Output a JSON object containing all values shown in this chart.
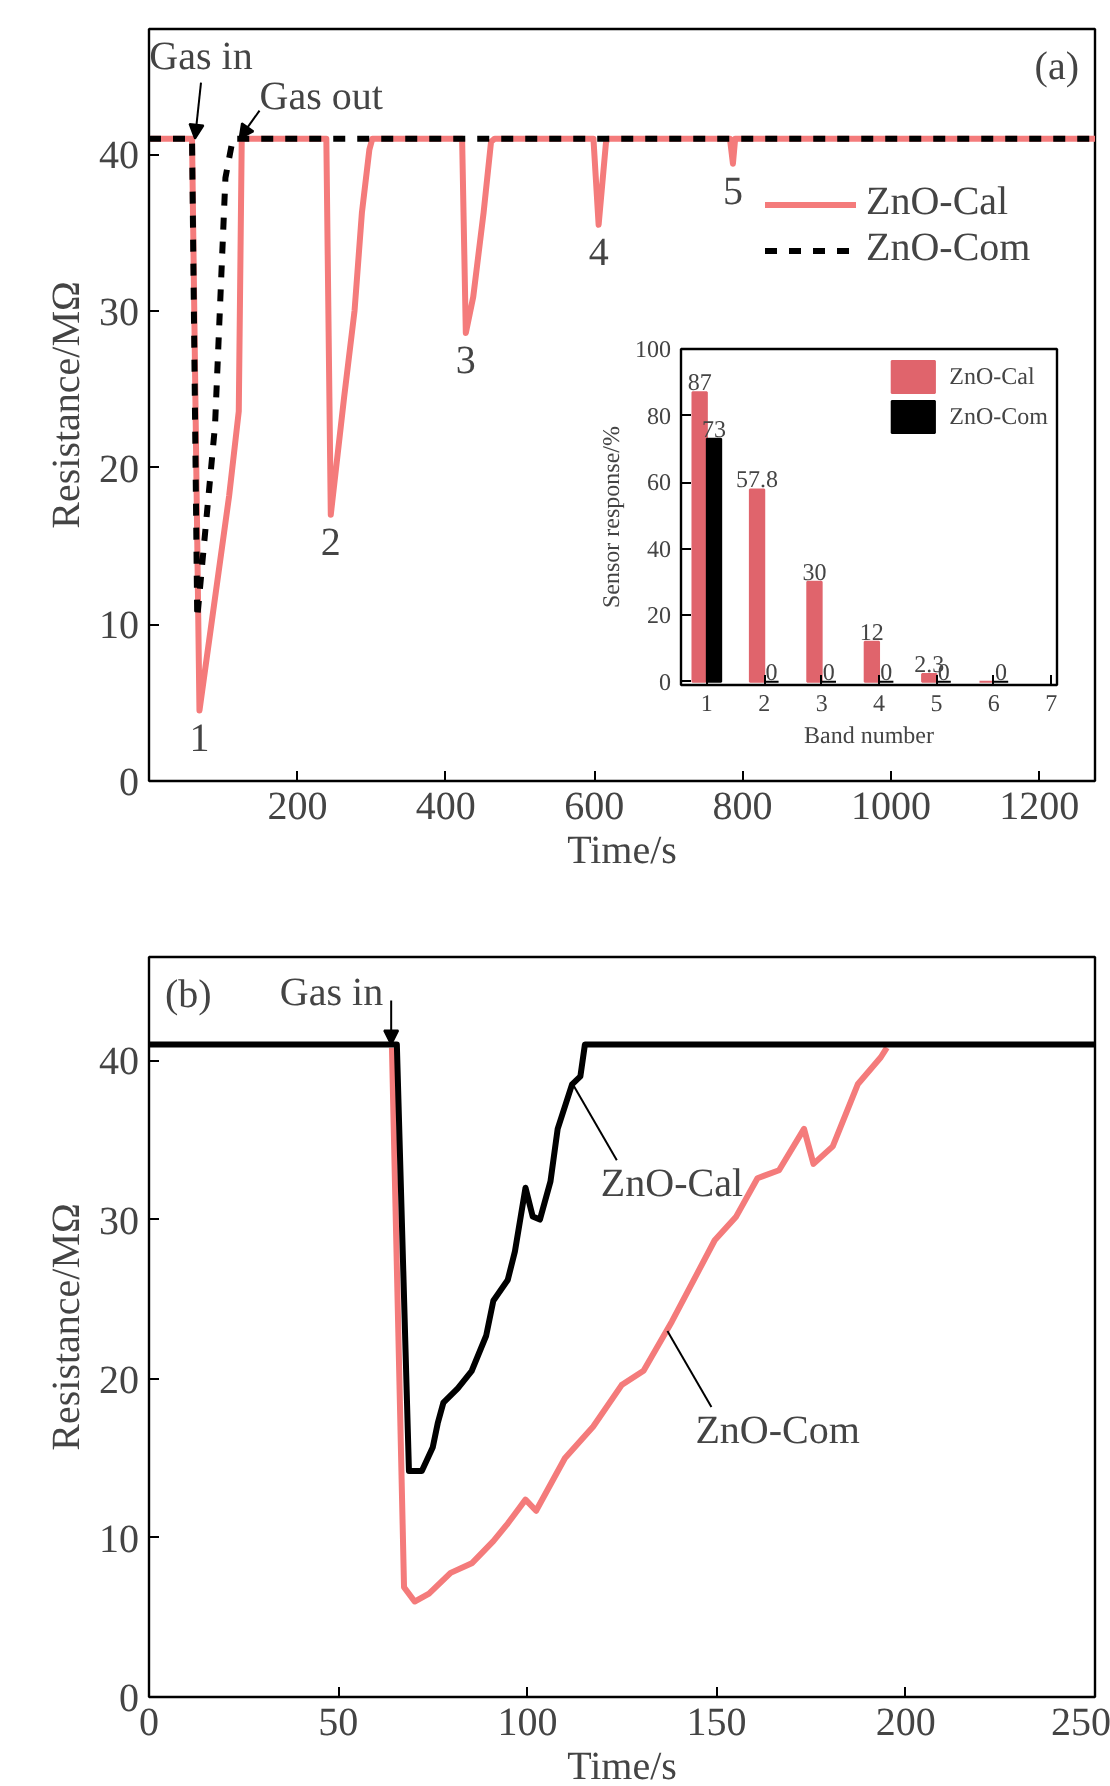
{
  "chart_data": [
    {
      "type": "line",
      "title": "(a)",
      "xlabel": "Time/s",
      "ylabel": "Resistance/MΩ",
      "xlim": [
        0,
        1275
      ],
      "ylim": [
        0,
        48
      ],
      "xticks": [
        200,
        400,
        600,
        800,
        1000,
        1200
      ],
      "yticks": [
        0,
        10,
        20,
        30,
        40
      ],
      "grid": false,
      "legend": "top right",
      "series": [
        {
          "name": "ZnO-Cal",
          "color": "#f47b7b",
          "line_style": "solid",
          "x": [
            0,
            58,
            68,
            108,
            121,
            125,
            239,
            245,
            263,
            277,
            287,
            297,
            301,
            422,
            427,
            437,
            451,
            461,
            466,
            599,
            606,
            616,
            619,
            783,
            787,
            790,
            1275
          ],
          "values": [
            41,
            41,
            4.5,
            18.2,
            23.6,
            41,
            41,
            17,
            24.5,
            30,
            36.3,
            40.3,
            41,
            41,
            28.6,
            30.9,
            36.3,
            40.8,
            41,
            41,
            35.5,
            40.8,
            41,
            41,
            39.4,
            41,
            41
          ]
        },
        {
          "name": "ZnO-Com",
          "color": "#000000",
          "line_style": "dashed",
          "x": [
            0,
            58,
            65,
            89,
            103,
            113,
            1275
          ],
          "values": [
            41,
            41,
            10.4,
            22.7,
            38.5,
            41,
            41
          ]
        }
      ],
      "annotations": [
        {
          "text": "Gas in",
          "x": 62,
          "y": 41
        },
        {
          "text": "Gas out",
          "x": 122,
          "y": 41
        },
        {
          "text": "1",
          "x": 68,
          "y": 4.5
        },
        {
          "text": "2",
          "x": 245,
          "y": 17
        },
        {
          "text": "3",
          "x": 427,
          "y": 28.6
        },
        {
          "text": "4",
          "x": 606,
          "y": 35.5
        },
        {
          "text": "5",
          "x": 787,
          "y": 39.4
        }
      ]
    },
    {
      "type": "bar",
      "xlabel": "Band number",
      "ylabel": "Sensor response/%",
      "x": [
        1,
        2,
        3,
        4,
        5,
        6
      ],
      "xlim": [
        0.55,
        7.1
      ],
      "ylim": [
        -1,
        100
      ],
      "xticks": [
        1,
        2,
        3,
        4,
        5,
        6,
        7
      ],
      "yticks": [
        0,
        20,
        40,
        60,
        80,
        100
      ],
      "grid": false,
      "legend": "top right",
      "series": [
        {
          "name": "ZnO-Cal",
          "color": "#e0646c",
          "values": [
            87,
            57.8,
            30,
            12,
            2.3,
            0
          ],
          "value_labels": [
            "87",
            "57.8",
            "30",
            "12",
            "2.3",
            null
          ]
        },
        {
          "name": "ZnO-Com",
          "color": "#000000",
          "values": [
            73,
            0,
            0,
            0,
            0,
            0
          ],
          "value_labels": [
            "73",
            "0",
            "0",
            "0",
            "0",
            "0"
          ]
        }
      ]
    },
    {
      "type": "line",
      "title": "(b)",
      "xlabel": "Time/s",
      "ylabel": "Resistance/MΩ",
      "xlim": [
        0,
        250
      ],
      "ylim": [
        0,
        46.5
      ],
      "xticks": [
        0,
        50,
        100,
        150,
        200,
        250
      ],
      "yticks": [
        0,
        10,
        20,
        30,
        40
      ],
      "grid": false,
      "series": [
        {
          "color": "#f47b7b",
          "line_style": "solid",
          "x": [
            64.2,
            67.4,
            70.2,
            74,
            79.7,
            85.3,
            91,
            94.8,
            99.5,
            102.3,
            109.9,
            117.4,
            124.9,
            130.7,
            138.2,
            149.5,
            155.2,
            160.8,
            166.5,
            173.1,
            175.6,
            180.7,
            187.3,
            193.4,
            195
          ],
          "values": [
            40.8,
            6.9,
            6.0,
            6.5,
            7.8,
            8.4,
            9.8,
            10.9,
            12.4,
            11.7,
            15,
            17,
            19.6,
            20.5,
            23.6,
            28.7,
            30.2,
            32.6,
            33.1,
            35.7,
            33.5,
            34.6,
            38.5,
            40.2,
            40.8
          ]
        },
        {
          "color": "#000000",
          "line_style": "solid",
          "x": [
            0,
            65.5,
            68.7,
            72.1,
            75,
            76.3,
            77.8,
            81.6,
            85.3,
            89.1,
            91,
            94.8,
            96.7,
            99.5,
            101.4,
            103.3,
            106.1,
            108,
            111.8,
            114,
            115.2,
            250
          ],
          "values": [
            41,
            41,
            14.2,
            14.2,
            15.7,
            17.2,
            18.5,
            19.4,
            20.5,
            22.7,
            24.9,
            26.2,
            28,
            32,
            30.2,
            30,
            32.4,
            35.7,
            38.5,
            39,
            41,
            41
          ]
        }
      ],
      "annotations": [
        {
          "text": "Gas in",
          "x": 64,
          "y": 41
        },
        {
          "text": "ZnO-Cal",
          "x": 112,
          "y": 38.5
        },
        {
          "text": "ZnO-Com",
          "x": 137,
          "y": 23
        }
      ]
    }
  ]
}
